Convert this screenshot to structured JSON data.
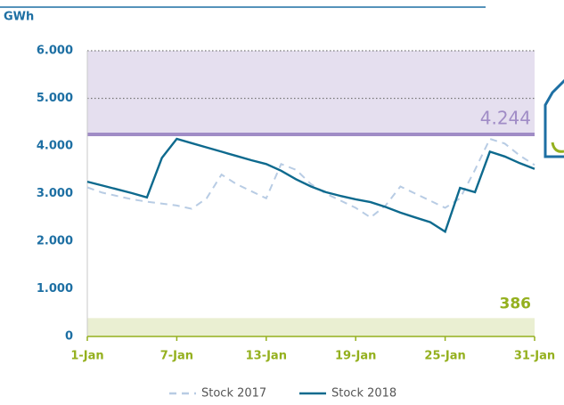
{
  "chart_data": {
    "type": "line",
    "unit_label": "GWh",
    "categories": [
      "1-Jan",
      null,
      null,
      null,
      null,
      null,
      "7-Jan",
      null,
      null,
      null,
      null,
      null,
      "13-Jan",
      null,
      null,
      null,
      null,
      null,
      "19-Jan",
      null,
      null,
      null,
      null,
      null,
      "25-Jan",
      null,
      null,
      null,
      null,
      null,
      "31-Jan"
    ],
    "series": [
      {
        "name": "Stock 2017",
        "color": "#b8cce4",
        "dashed": true,
        "values": [
          3130,
          3020,
          2950,
          2880,
          2830,
          2790,
          2750,
          2680,
          2900,
          3400,
          3200,
          3050,
          2900,
          3620,
          3500,
          3200,
          3000,
          2850,
          2700,
          2500,
          2750,
          3150,
          3000,
          2850,
          2700,
          2900,
          3500,
          4150,
          4050,
          3800,
          3600
        ]
      },
      {
        "name": "Stock 2018",
        "color": "#0e6a8e",
        "dashed": false,
        "values": [
          3250,
          3170,
          3090,
          3010,
          2920,
          3750,
          4150,
          4060,
          3970,
          3880,
          3790,
          3700,
          3620,
          3480,
          3300,
          3150,
          3030,
          2950,
          2880,
          2820,
          2720,
          2600,
          2500,
          2400,
          2200,
          3120,
          3030,
          3880,
          3780,
          3640,
          3520
        ]
      }
    ],
    "thresholds": [
      {
        "value": 4244,
        "label": "4.244",
        "color": "#a08cc6",
        "band": "above"
      },
      {
        "value": 386,
        "label": "386",
        "color": "#94b01e",
        "band": "below"
      }
    ],
    "ylim": [
      0,
      6000
    ],
    "yticks": [
      0,
      {
        "value": 1000,
        "label": "1.000"
      },
      {
        "value": 2000,
        "label": "2.000"
      },
      {
        "value": 3000,
        "label": "3.000"
      },
      {
        "value": 4000,
        "label": "4.000"
      },
      {
        "value": 5000,
        "label": "5.000"
      },
      {
        "value": 6000,
        "label": "6.000"
      }
    ],
    "legend": "bottom"
  }
}
